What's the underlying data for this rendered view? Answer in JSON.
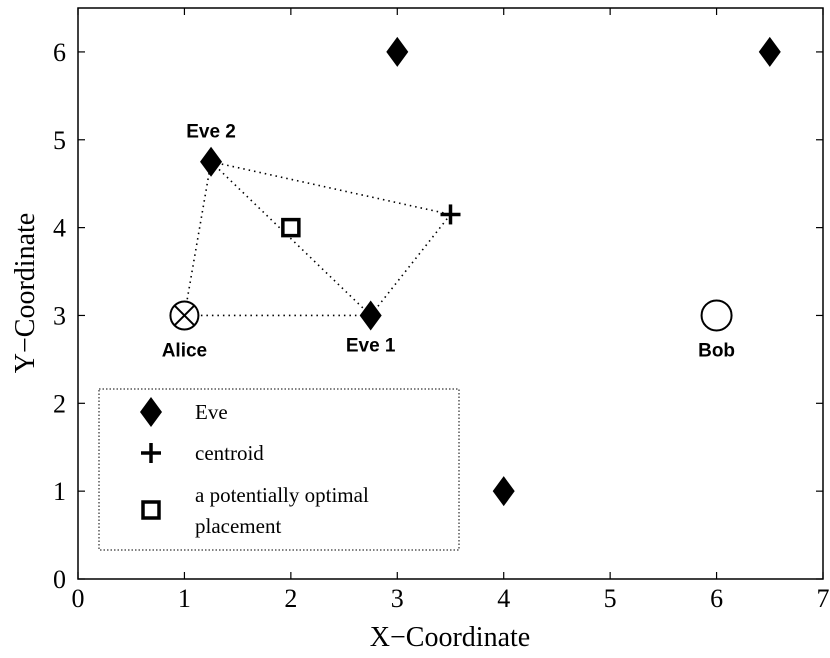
{
  "chart_data": {
    "type": "scatter",
    "xlabel": "X−Coordinate",
    "ylabel": "Y−Coordinate",
    "xlim": [
      0,
      7
    ],
    "ylim": [
      0,
      6.5
    ],
    "xticks": [
      "0",
      "1",
      "2",
      "3",
      "4",
      "5",
      "6",
      "7"
    ],
    "yticks": [
      "0",
      "1",
      "2",
      "3",
      "4",
      "5",
      "6"
    ],
    "grid": false,
    "series": [
      {
        "name": "Eve",
        "marker": "diamond",
        "color": "#000000",
        "points": [
          {
            "x": 1.25,
            "y": 4.75,
            "label": "Eve 2"
          },
          {
            "x": 2.75,
            "y": 3.0,
            "label": "Eve 1"
          },
          {
            "x": 3.0,
            "y": 6.0,
            "label": ""
          },
          {
            "x": 6.5,
            "y": 6.0,
            "label": ""
          },
          {
            "x": 4.0,
            "y": 1.0,
            "label": ""
          }
        ]
      },
      {
        "name": "centroid",
        "marker": "plus",
        "color": "#000000",
        "points": [
          {
            "x": 3.5,
            "y": 4.15,
            "label": ""
          }
        ]
      },
      {
        "name": "a potentially optimal placement",
        "marker": "square",
        "color": "#000000",
        "points": [
          {
            "x": 2.0,
            "y": 4.0,
            "label": ""
          }
        ]
      }
    ],
    "other_points": [
      {
        "x": 1.0,
        "y": 3.0,
        "label": "Alice",
        "marker": "circle-x"
      },
      {
        "x": 6.0,
        "y": 3.0,
        "label": "Bob",
        "marker": "circle"
      }
    ],
    "dotted_lines": [
      [
        [
          1.0,
          3.0
        ],
        [
          2.75,
          3.0
        ]
      ],
      [
        [
          1.0,
          3.0
        ],
        [
          1.25,
          4.75
        ]
      ],
      [
        [
          1.25,
          4.75
        ],
        [
          3.5,
          4.15
        ]
      ],
      [
        [
          3.5,
          4.15
        ],
        [
          2.75,
          3.0
        ]
      ],
      [
        [
          2.75,
          3.0
        ],
        [
          1.25,
          4.75
        ]
      ]
    ],
    "legend": {
      "position": "bottom-left",
      "entries": [
        {
          "marker": "diamond",
          "label_lines": [
            "Eve"
          ]
        },
        {
          "marker": "plus",
          "label_lines": [
            "centroid"
          ]
        },
        {
          "marker": "square",
          "label_lines": [
            "a potentially optimal",
            " placement"
          ]
        }
      ]
    }
  }
}
